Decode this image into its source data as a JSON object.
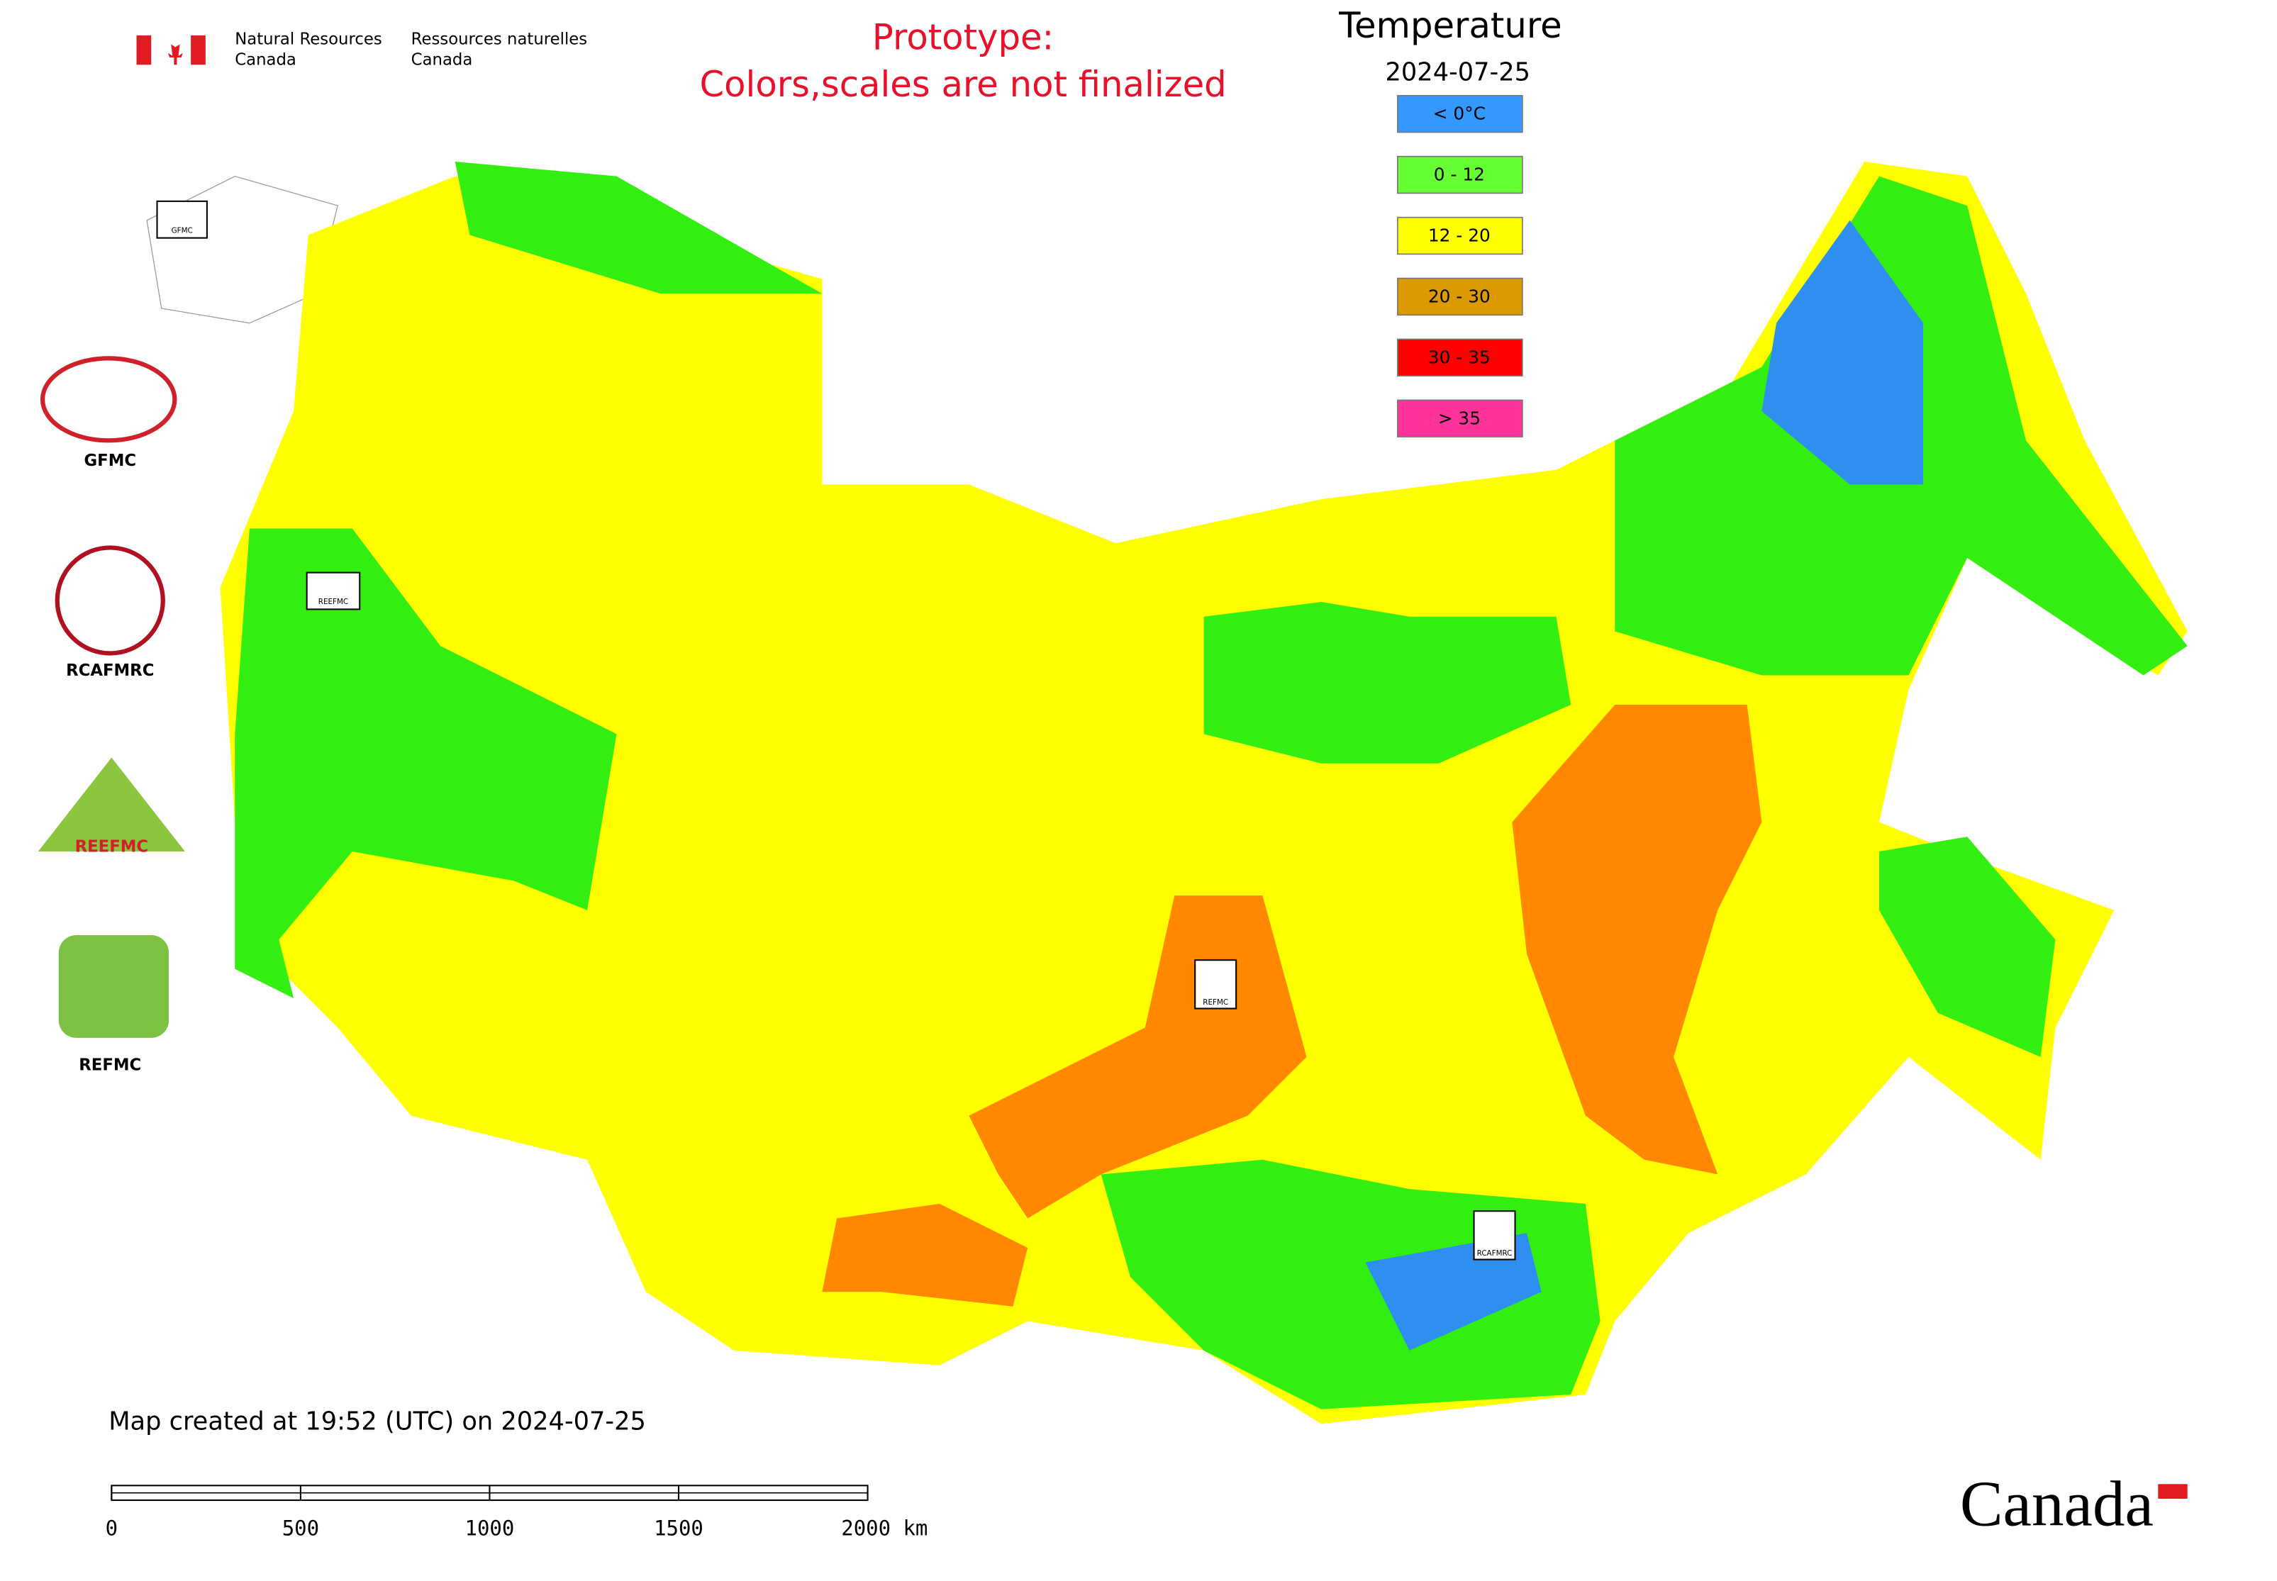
{
  "header": {
    "department_en": [
      "Natural Resources",
      "Canada"
    ],
    "department_fr": [
      "Ressources naturelles",
      "Canada"
    ]
  },
  "notice": [
    "Prototype:",
    "Colors,scales are not finalized"
  ],
  "legend": {
    "title": "Temperature",
    "date": "2024-07-25",
    "items": [
      {
        "label": "< 0°C",
        "color": "#3399ff"
      },
      {
        "label": "0 - 12",
        "color": "#66ff33"
      },
      {
        "label": "12 - 20",
        "color": "#ffff00"
      },
      {
        "label": "20 - 30",
        "color": "#dd9900"
      },
      {
        "label": "30 - 35",
        "color": "#ff0000"
      },
      {
        "label": "> 35",
        "color": "#ff3399"
      }
    ]
  },
  "logos": [
    "GFMC",
    "RCAFMRC",
    "REEFMC",
    "REFMC"
  ],
  "map_markers": [
    "GFMC",
    "REEFMC",
    "REFMC",
    "RCAFMRC"
  ],
  "footer": {
    "created": "Map created at 19:52 (UTC) on 2024-07-25",
    "wordmark": "Canada"
  },
  "scale_bar": {
    "labels": [
      "0",
      "500",
      "1000",
      "1500",
      "2000 km"
    ]
  }
}
